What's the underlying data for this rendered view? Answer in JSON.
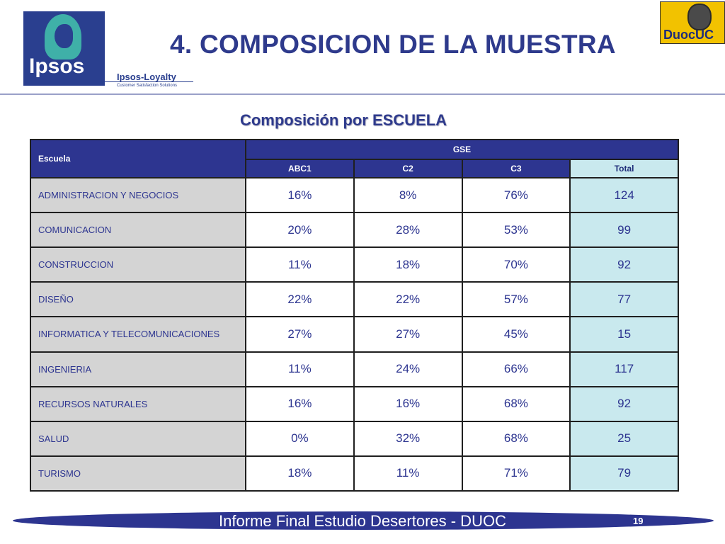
{
  "logos": {
    "ipsos_word": "Ipsos",
    "loyalty_name": "Ipsos-Loyalty",
    "loyalty_tagline": "Customer Satisfaction Solutions",
    "duoc_word": "DuocUC"
  },
  "header": {
    "title": "4. COMPOSICION DE LA MUESTRA"
  },
  "subtitle": "Composición por ESCUELA",
  "table": {
    "row_header": "Escuela",
    "group_header": "GSE",
    "columns": [
      "ABC1",
      "C2",
      "C3",
      "Total"
    ],
    "rows": [
      {
        "escuela": "ADMINISTRACION Y NEGOCIOS",
        "abc1": "16%",
        "c2": "8%",
        "c3": "76%",
        "total": "124"
      },
      {
        "escuela": "COMUNICACION",
        "abc1": "20%",
        "c2": "28%",
        "c3": "53%",
        "total": "99"
      },
      {
        "escuela": "CONSTRUCCION",
        "abc1": "11%",
        "c2": "18%",
        "c3": "70%",
        "total": "92"
      },
      {
        "escuela": "DISEÑO",
        "abc1": "22%",
        "c2": "22%",
        "c3": "57%",
        "total": "77"
      },
      {
        "escuela": "INFORMATICA Y TELECOMUNICACIONES",
        "abc1": "27%",
        "c2": "27%",
        "c3": "45%",
        "total": "15"
      },
      {
        "escuela": "INGENIERIA",
        "abc1": "11%",
        "c2": "24%",
        "c3": "66%",
        "total": "117"
      },
      {
        "escuela": "RECURSOS NATURALES",
        "abc1": "16%",
        "c2": "16%",
        "c3": "68%",
        "total": "92"
      },
      {
        "escuela": "SALUD",
        "abc1": "0%",
        "c2": "32%",
        "c3": "68%",
        "total": "25"
      },
      {
        "escuela": "TURISMO",
        "abc1": "18%",
        "c2": "11%",
        "c3": "71%",
        "total": "79"
      }
    ]
  },
  "footer": {
    "text": "Informe Final Estudio Desertores - DUOC",
    "page_number": "19"
  },
  "colors": {
    "brand_blue": "#2d3590",
    "title_blue": "#2e3a8c",
    "total_column": "#c9e9ee",
    "label_gray": "#d4d4d4",
    "ipsos_teal": "#3fb0a8",
    "duoc_yellow": "#f2c200"
  }
}
